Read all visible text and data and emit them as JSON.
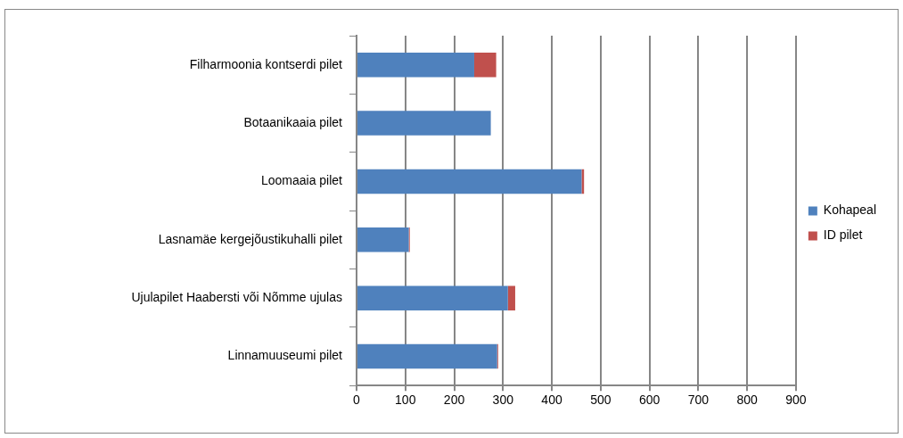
{
  "chart_data": {
    "type": "bar",
    "orientation": "horizontal",
    "stacked": true,
    "categories": [
      "Filharmoonia kontserdi pilet",
      "Botaanikaaia pilet",
      "Loomaaia pilet",
      "Lasnamäe kergejõustikuhalli pilet",
      "Ujulapilet Haabersti või Nõmme ujulas",
      "Linnamuuseumi pilet"
    ],
    "series": [
      {
        "name": "Kohapeal",
        "color": "#4f81bd",
        "values": [
          241,
          275,
          461,
          107,
          310,
          288
        ]
      },
      {
        "name": "ID pilet",
        "color": "#c0504d",
        "values": [
          45,
          0,
          5,
          2,
          15,
          2
        ]
      }
    ],
    "xlim": [
      0,
      900
    ],
    "xticks": [
      0,
      100,
      200,
      300,
      400,
      500,
      600,
      700,
      800,
      900
    ],
    "grid": "x",
    "legend": "right"
  }
}
